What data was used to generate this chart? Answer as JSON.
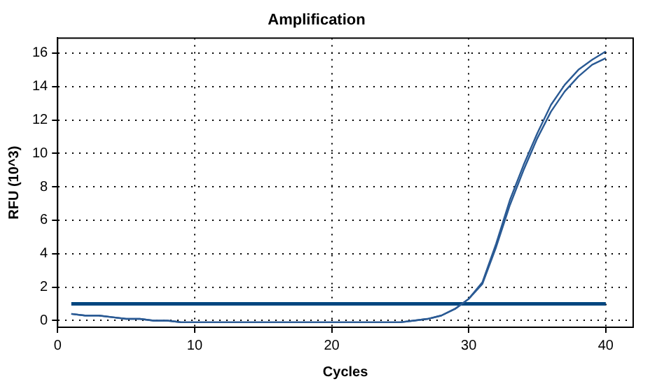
{
  "chart_data": {
    "type": "line",
    "title": "Amplification",
    "xlabel": "Cycles",
    "ylabel": "RFU (10^3)",
    "x": [
      1,
      2,
      3,
      4,
      5,
      6,
      7,
      8,
      9,
      10,
      11,
      12,
      13,
      14,
      15,
      16,
      17,
      18,
      19,
      20,
      21,
      22,
      23,
      24,
      25,
      26,
      27,
      28,
      29,
      30,
      31,
      32,
      33,
      34,
      35,
      36,
      37,
      38,
      39,
      40
    ],
    "series": [
      {
        "color": "#2a5a94",
        "values": [
          0.4,
          0.3,
          0.3,
          0.2,
          0.1,
          0.1,
          0,
          0,
          -0.1,
          -0.1,
          -0.1,
          -0.1,
          -0.1,
          -0.1,
          -0.1,
          -0.1,
          -0.1,
          -0.1,
          -0.1,
          -0.1,
          -0.1,
          -0.1,
          -0.1,
          -0.1,
          -0.1,
          0,
          0.1,
          0.3,
          0.7,
          1.3,
          2.3,
          4.6,
          7.2,
          9.3,
          11.2,
          12.9,
          14.1,
          15.0,
          15.6,
          16.1
        ]
      },
      {
        "color": "#2a5a94",
        "values": [
          0.4,
          0.3,
          0.3,
          0.2,
          0.1,
          0.1,
          0,
          0,
          -0.1,
          -0.1,
          -0.1,
          -0.1,
          -0.1,
          -0.1,
          -0.1,
          -0.1,
          -0.1,
          -0.1,
          -0.1,
          -0.1,
          -0.1,
          -0.1,
          -0.1,
          -0.1,
          -0.1,
          0,
          0.1,
          0.3,
          0.7,
          1.3,
          2.2,
          4.4,
          6.9,
          9.0,
          10.9,
          12.5,
          13.7,
          14.6,
          15.3,
          15.7
        ]
      }
    ],
    "ref_lines": [
      {
        "axis": "y",
        "value": 1.0,
        "color": "#00467f"
      }
    ],
    "xlim": [
      0,
      42
    ],
    "xticks": [
      0,
      10,
      20,
      30,
      40
    ],
    "ylim": [
      -0.4,
      16.9
    ],
    "yticks": [
      0,
      2,
      4,
      6,
      8,
      10,
      12,
      14,
      16
    ],
    "grid": true,
    "legend": false,
    "marker": "none",
    "line_style": "solid"
  }
}
